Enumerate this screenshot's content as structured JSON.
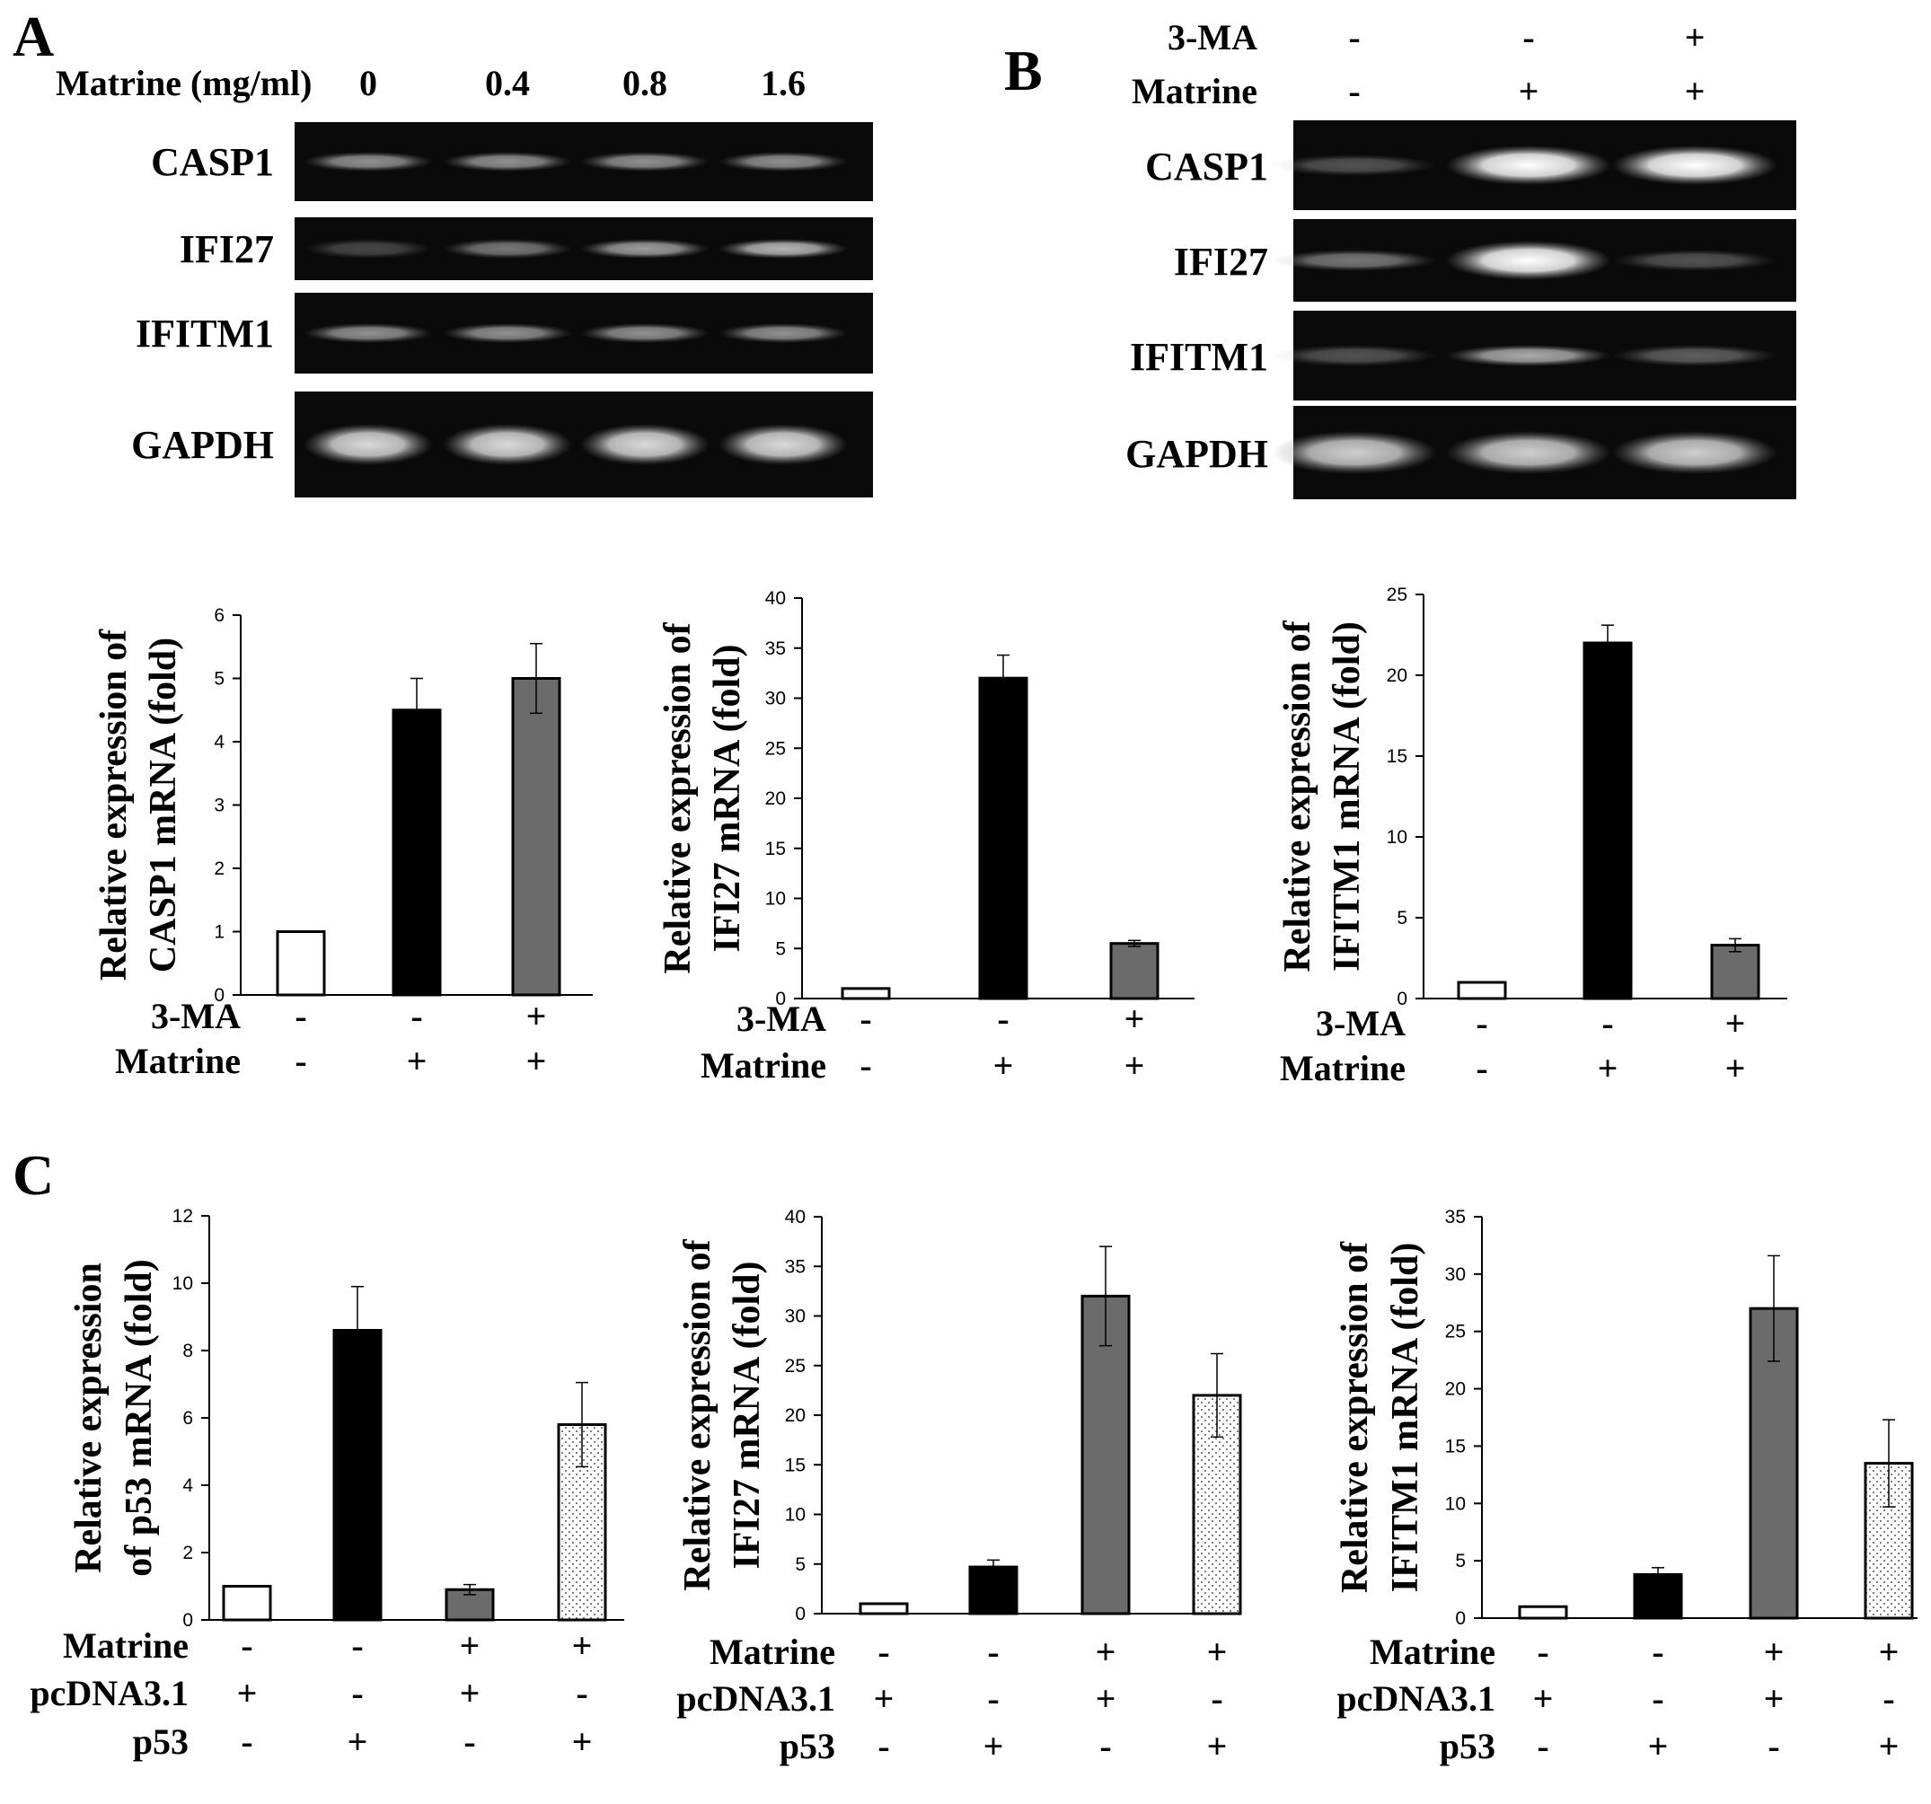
{
  "panels": {
    "a": "A",
    "b": "B",
    "c": "C"
  },
  "gel_a": {
    "dose_label": "Matrine (mg/ml)",
    "doses": [
      "0",
      "0.4",
      "0.8",
      "1.6"
    ],
    "genes": [
      {
        "name": "CASP1",
        "bands": [
          0.55,
          0.55,
          0.55,
          0.55
        ]
      },
      {
        "name": "IFI27",
        "bands": [
          0.25,
          0.45,
          0.6,
          0.7
        ]
      },
      {
        "name": "IFITM1",
        "bands": [
          0.55,
          0.55,
          0.55,
          0.55
        ]
      },
      {
        "name": "GAPDH",
        "bands": [
          0.85,
          0.85,
          0.85,
          0.85
        ]
      }
    ]
  },
  "gel_b": {
    "rows": [
      {
        "name": "3-MA",
        "values": [
          "-",
          "-",
          "+"
        ]
      },
      {
        "name": "Matrine",
        "values": [
          "-",
          "+",
          "+"
        ]
      }
    ],
    "genes": [
      {
        "name": "CASP1",
        "bands": [
          0.3,
          1.0,
          1.0
        ]
      },
      {
        "name": "IFI27",
        "bands": [
          0.45,
          1.0,
          0.3
        ]
      },
      {
        "name": "IFITM1",
        "bands": [
          0.3,
          0.65,
          0.35
        ]
      },
      {
        "name": "GAPDH",
        "bands": [
          0.8,
          0.8,
          0.8
        ]
      }
    ]
  },
  "colors": {
    "black": "#000000",
    "dark_gray": "#6b6b6b",
    "white": "#ffffff",
    "dotted": "#e0e0e0"
  },
  "chart_data": [
    {
      "type": "bar",
      "ylabel": [
        "Relative  expression  of",
        "CASP1 mRNA (fold)"
      ],
      "ylim": [
        0,
        6
      ],
      "yticks": [
        0,
        1,
        2,
        3,
        4,
        5,
        6
      ],
      "values": [
        1,
        4.5,
        5.0
      ],
      "errors": [
        0,
        0.5,
        0.55
      ],
      "fills": [
        "white",
        "black",
        "dark_gray"
      ],
      "conditions": [
        {
          "name": "3-MA",
          "values": [
            "-",
            "-",
            "+"
          ]
        },
        {
          "name": "Matrine",
          "values": [
            "-",
            "+",
            "+"
          ]
        }
      ]
    },
    {
      "type": "bar",
      "ylabel": [
        "Relative  expression  of",
        "IFI27 mRNA (fold)"
      ],
      "ylim": [
        0,
        40
      ],
      "yticks": [
        0,
        5,
        10,
        15,
        20,
        25,
        30,
        35,
        40
      ],
      "values": [
        1,
        32,
        5.5
      ],
      "errors": [
        0,
        2.3,
        0.3
      ],
      "fills": [
        "white",
        "black",
        "dark_gray"
      ],
      "conditions": [
        {
          "name": "3-MA",
          "values": [
            "-",
            "-",
            "+"
          ]
        },
        {
          "name": "Matrine",
          "values": [
            "-",
            "+",
            "+"
          ]
        }
      ]
    },
    {
      "type": "bar",
      "ylabel": [
        "Relative expression of",
        "IFITM1 mRNA (fold)"
      ],
      "ylim": [
        0,
        25
      ],
      "yticks": [
        0,
        5,
        10,
        15,
        20,
        25
      ],
      "values": [
        1,
        22,
        3.3
      ],
      "errors": [
        0,
        1.1,
        0.4
      ],
      "fills": [
        "white",
        "black",
        "dark_gray"
      ],
      "conditions": [
        {
          "name": "3-MA",
          "values": [
            "-",
            "-",
            "+"
          ]
        },
        {
          "name": "Matrine",
          "values": [
            "-",
            "+",
            "+"
          ]
        }
      ]
    },
    {
      "type": "bar",
      "ylabel": [
        "Relative  expression",
        "of  p53 mRNA (fold)"
      ],
      "ylim": [
        0,
        12
      ],
      "yticks": [
        0,
        2,
        4,
        6,
        8,
        10,
        12
      ],
      "values": [
        1,
        8.6,
        0.9,
        5.8
      ],
      "errors": [
        0,
        1.3,
        0.15,
        1.25
      ],
      "fills": [
        "white",
        "black",
        "dark_gray",
        "dotted"
      ],
      "conditions": [
        {
          "name": "Matrine",
          "values": [
            "-",
            "-",
            "+",
            "+"
          ]
        },
        {
          "name": "pcDNA3.1",
          "values": [
            "+",
            "-",
            "+",
            "-"
          ]
        },
        {
          "name": "p53",
          "values": [
            "-",
            "+",
            "-",
            "+"
          ]
        }
      ]
    },
    {
      "type": "bar",
      "ylabel": [
        "Relative expression of",
        "IFI27 mRNA (fold)"
      ],
      "ylim": [
        0,
        40
      ],
      "yticks": [
        0,
        5,
        10,
        15,
        20,
        25,
        30,
        35,
        40
      ],
      "values": [
        1,
        4.7,
        32,
        22
      ],
      "errors": [
        0,
        0.7,
        5,
        4.2
      ],
      "fills": [
        "white",
        "black",
        "dark_gray",
        "dotted"
      ],
      "conditions": [
        {
          "name": "Matrine",
          "values": [
            "-",
            "-",
            "+",
            "+"
          ]
        },
        {
          "name": "pcDNA3.1",
          "values": [
            "+",
            "-",
            "+",
            "-"
          ]
        },
        {
          "name": "p53",
          "values": [
            "-",
            "+",
            "-",
            "+"
          ]
        }
      ]
    },
    {
      "type": "bar",
      "ylabel": [
        "Relative expression of",
        "IFITM1 mRNA (fold)"
      ],
      "ylim": [
        0,
        35
      ],
      "yticks": [
        0,
        5,
        10,
        15,
        20,
        25,
        30,
        35
      ],
      "values": [
        1,
        3.8,
        27,
        13.5
      ],
      "errors": [
        0,
        0.6,
        4.6,
        3.8
      ],
      "fills": [
        "white",
        "black",
        "dark_gray",
        "dotted"
      ],
      "conditions": [
        {
          "name": "Matrine",
          "values": [
            "-",
            "-",
            "+",
            "+"
          ]
        },
        {
          "name": "pcDNA3.1",
          "values": [
            "+",
            "-",
            "+",
            "-"
          ]
        },
        {
          "name": "p53",
          "values": [
            "-",
            "+",
            "-",
            "+"
          ]
        }
      ]
    }
  ]
}
